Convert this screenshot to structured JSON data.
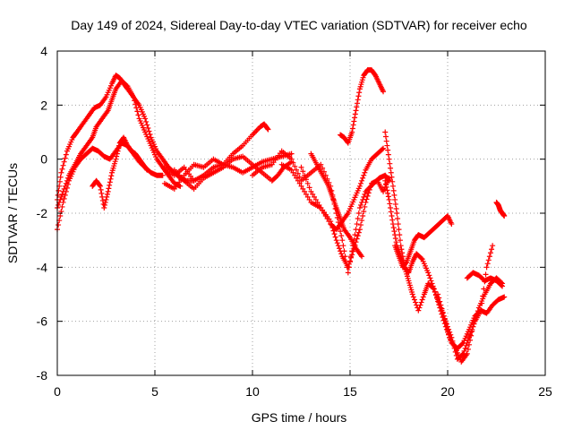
{
  "chart_data": {
    "type": "scatter",
    "title": "Day 149 of 2024, Sidereal Day-to-day VTEC variation (SDTVAR) for receiver echo",
    "xlabel": "GPS time / hours",
    "ylabel": "SDTVAR / TECUs",
    "xlim": [
      0,
      25
    ],
    "ylim": [
      -8,
      4
    ],
    "xticks": [
      0,
      5,
      10,
      15,
      20,
      25
    ],
    "yticks": [
      -8,
      -6,
      -4,
      -2,
      0,
      2,
      4
    ],
    "xtick_labels": [
      "0",
      "5",
      "10",
      "15",
      "20",
      "25"
    ],
    "ytick_labels": [
      "-8",
      "-6",
      "-4",
      "-2",
      "0",
      "2",
      "4"
    ],
    "grid": true,
    "marker": "+",
    "color": "#ff0000",
    "series": [
      {
        "x": [
          0.0,
          0.2,
          0.5,
          0.8,
          1.0,
          1.3,
          1.6,
          1.9,
          2.2,
          2.5,
          2.8,
          3.0,
          3.2,
          3.4,
          3.6,
          3.9,
          4.2,
          4.5,
          4.8,
          5.1,
          5.4,
          5.7,
          6.0,
          6.3,
          6.6,
          7.0
        ],
        "y": [
          -1.5,
          -0.5,
          0.3,
          0.8,
          1.0,
          1.3,
          1.6,
          1.9,
          2.0,
          2.3,
          2.8,
          3.1,
          3.0,
          2.8,
          2.6,
          2.3,
          2.0,
          1.5,
          0.8,
          0.3,
          0.0,
          -0.3,
          -0.5,
          -0.7,
          -0.8,
          -0.8
        ]
      },
      {
        "x": [
          0.0,
          0.3,
          0.6,
          0.9,
          1.2,
          1.5,
          1.8,
          2.0,
          2.3,
          2.6,
          2.8,
          3.0,
          3.3,
          3.6,
          3.9,
          4.2,
          4.5,
          4.8,
          5.1,
          5.4,
          5.7,
          6.0,
          6.3
        ],
        "y": [
          -1.8,
          -1.2,
          -0.6,
          -0.2,
          0.2,
          0.5,
          0.8,
          1.2,
          1.5,
          1.8,
          2.2,
          2.6,
          2.9,
          2.7,
          2.3,
          1.5,
          1.0,
          0.5,
          0.0,
          -0.3,
          -0.6,
          -0.9,
          -1.0
        ]
      },
      {
        "x": [
          0.0,
          0.3,
          0.6,
          0.9,
          1.2,
          1.5,
          1.8,
          2.1,
          2.4,
          2.7,
          3.0,
          3.3,
          3.6,
          3.9,
          4.2,
          4.5,
          4.8,
          5.1,
          5.4
        ],
        "y": [
          -2.6,
          -1.6,
          -0.8,
          -0.3,
          0.0,
          0.2,
          0.4,
          0.3,
          0.1,
          0.0,
          0.3,
          0.6,
          0.5,
          0.2,
          -0.1,
          -0.3,
          -0.5,
          -0.6,
          -0.6
        ]
      },
      {
        "x": [
          1.8,
          2.0,
          2.2,
          2.4,
          2.6,
          2.8,
          3.0,
          3.2,
          3.4,
          3.6,
          3.8,
          4.0,
          4.2,
          4.4,
          4.6
        ],
        "y": [
          -1.0,
          -0.8,
          -1.0,
          -1.8,
          -1.2,
          -0.5,
          0.0,
          0.6,
          0.8,
          0.5,
          0.3,
          0.2,
          0.0,
          -0.2,
          -0.4
        ]
      },
      {
        "x": [
          5.5,
          6.0,
          6.5,
          7.0,
          7.5,
          8.0,
          8.5,
          9.0,
          9.5,
          10.0,
          10.5,
          11.0,
          11.5,
          12.0
        ],
        "y": [
          -0.3,
          -0.6,
          -0.3,
          -0.8,
          -0.6,
          -0.3,
          -0.2,
          -0.3,
          -0.5,
          -0.3,
          -0.1,
          0.0,
          0.1,
          0.2
        ]
      },
      {
        "x": [
          5.5,
          6.0,
          6.5,
          7.0,
          7.5,
          8.0,
          8.5,
          9.0,
          9.5,
          10.0,
          10.4,
          10.6,
          10.8
        ],
        "y": [
          -0.9,
          -1.1,
          -0.6,
          -0.2,
          -0.3,
          0.0,
          -0.2,
          0.2,
          0.5,
          0.9,
          1.2,
          1.3,
          1.1
        ]
      },
      {
        "x": [
          6.0,
          6.5,
          7.0,
          7.5,
          8.0,
          8.5,
          9.0,
          9.5,
          10.0,
          10.5,
          11.0,
          11.3,
          11.6,
          12.0
        ],
        "y": [
          -0.4,
          -0.8,
          -1.1,
          -0.7,
          -0.5,
          -0.3,
          0.0,
          0.1,
          -0.2,
          -0.5,
          -0.8,
          -0.6,
          -0.3,
          -0.1
        ]
      },
      {
        "x": [
          10.0,
          10.5,
          11.0,
          11.5,
          12.0,
          12.5,
          13.0,
          13.5,
          14.0,
          14.3,
          14.6,
          14.9,
          15.2,
          15.5,
          15.8,
          16.2,
          16.5,
          16.8,
          17.0
        ],
        "y": [
          -0.6,
          -0.3,
          -0.2,
          0.3,
          0.0,
          -0.8,
          -0.5,
          -0.2,
          -1.0,
          -2.0,
          -3.0,
          -4.2,
          -3.0,
          -1.8,
          -1.2,
          -0.9,
          -0.7,
          -0.6,
          -0.8
        ]
      },
      {
        "x": [
          11.5,
          12.0,
          12.5,
          13.0,
          13.5,
          14.0,
          14.3,
          14.6,
          14.9,
          15.2,
          15.5,
          15.8,
          16.1,
          16.4,
          16.7
        ],
        "y": [
          -0.2,
          -0.4,
          -1.0,
          -1.6,
          -1.8,
          -2.4,
          -2.6,
          -2.3,
          -2.0,
          -1.5,
          -1.0,
          -0.4,
          0.0,
          0.2,
          0.4
        ]
      },
      {
        "x": [
          12.5,
          13.0,
          13.5,
          14.0,
          14.3,
          14.6,
          14.9,
          15.2,
          15.5,
          15.8,
          16.1,
          16.4,
          16.7,
          17.0
        ],
        "y": [
          -0.3,
          -1.2,
          -1.8,
          -2.3,
          -3.0,
          -3.6,
          -4.0,
          -3.3,
          -2.6,
          -1.6,
          -0.9,
          -0.8,
          -1.2,
          -0.7
        ]
      },
      {
        "x": [
          13.0,
          13.3,
          13.6,
          13.9,
          14.1,
          14.3,
          14.5,
          14.7,
          15.0,
          15.3,
          15.6
        ],
        "y": [
          0.2,
          -0.2,
          -0.6,
          -1.0,
          -1.4,
          -1.8,
          -2.2,
          -2.6,
          -2.9,
          -3.3,
          -3.6
        ]
      },
      {
        "x": [
          14.5,
          14.7,
          14.9,
          15.1,
          15.3,
          15.5,
          15.7,
          15.9,
          16.1,
          16.3,
          16.5,
          16.7
        ],
        "y": [
          0.9,
          0.8,
          0.6,
          1.0,
          1.8,
          2.6,
          3.1,
          3.3,
          3.3,
          3.1,
          2.8,
          2.5
        ]
      },
      {
        "x": [
          16.8,
          17.0,
          17.2,
          17.4,
          17.6,
          17.8,
          18.0,
          18.2,
          18.5,
          18.8,
          19.0,
          19.3,
          19.6,
          19.9,
          20.2,
          20.5,
          20.8,
          21.1,
          21.4,
          21.7,
          22.0,
          22.3,
          22.6,
          22.9
        ],
        "y": [
          1.0,
          0.0,
          -1.0,
          -2.0,
          -3.2,
          -4.0,
          -4.5,
          -5.0,
          -5.6,
          -5.0,
          -4.6,
          -4.8,
          -5.5,
          -6.2,
          -6.8,
          -7.0,
          -6.8,
          -6.3,
          -5.8,
          -5.6,
          -5.7,
          -5.4,
          -5.2,
          -5.1
        ]
      },
      {
        "x": [
          16.8,
          17.0,
          17.2,
          17.4,
          17.6,
          17.8,
          18.0,
          18.2,
          18.4,
          18.7,
          19.0,
          19.3,
          19.6,
          19.9,
          20.2,
          20.5,
          20.8,
          21.1,
          21.4,
          21.7,
          22.0,
          22.3
        ],
        "y": [
          -0.8,
          -1.5,
          -2.4,
          -3.2,
          -3.6,
          -4.0,
          -4.2,
          -3.8,
          -3.5,
          -3.7,
          -4.2,
          -4.8,
          -5.4,
          -6.0,
          -6.6,
          -7.4,
          -7.2,
          -6.6,
          -6.0,
          -5.6,
          -4.0,
          -3.2
        ]
      },
      {
        "x": [
          17.3,
          17.5,
          17.7,
          17.9,
          18.1,
          18.3,
          18.5,
          18.8,
          19.1,
          19.4,
          19.7,
          20.0,
          20.2
        ],
        "y": [
          -3.2,
          -3.6,
          -4.0,
          -3.8,
          -3.4,
          -3.0,
          -2.8,
          -2.9,
          -2.7,
          -2.5,
          -2.3,
          -2.1,
          -2.4
        ]
      },
      {
        "x": [
          19.5,
          19.8,
          20.1,
          20.4,
          20.7,
          21.0,
          21.3,
          21.6,
          21.9,
          22.2,
          22.5,
          22.8
        ],
        "y": [
          -5.0,
          -5.8,
          -6.6,
          -7.0,
          -7.5,
          -7.2,
          -6.2,
          -5.5,
          -5.0,
          -4.6,
          -4.4,
          -4.6
        ]
      },
      {
        "x": [
          21.0,
          21.3,
          21.6,
          21.9,
          22.2,
          22.5,
          22.8
        ],
        "y": [
          -4.4,
          -4.2,
          -4.3,
          -4.5,
          -4.4,
          -4.5,
          -4.7
        ]
      },
      {
        "x": [
          22.5,
          22.6,
          22.7,
          22.8,
          22.9
        ],
        "y": [
          -1.6,
          -1.7,
          -1.9,
          -2.0,
          -2.1
        ]
      }
    ]
  }
}
